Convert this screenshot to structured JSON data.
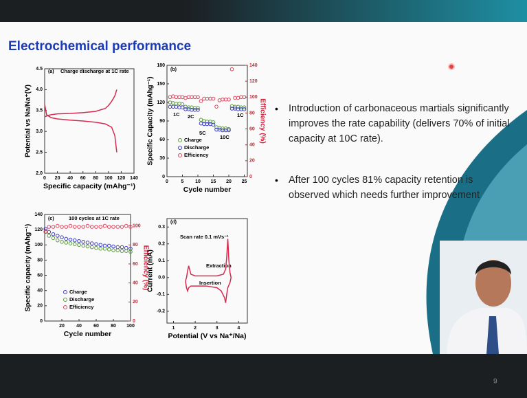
{
  "slide": {
    "title": "Electrochemical performance",
    "bullets": [
      "Introduction of carbonaceous martials significantly improves the rate capability (delivers 70% of initial capacity at 10C rate).",
      "After 100 cycles 81% capacity retention is observed which needs further improvement"
    ],
    "page_number": "9"
  },
  "chart_data": [
    {
      "type": "line",
      "annotations": [
        "(a)",
        "Charge discharge at 1C rate"
      ],
      "xlabel": "Specific capacity (mAhg⁻¹)",
      "ylabel": "Potential vs Na/Na⁺(V)",
      "xlim": [
        0,
        140
      ],
      "xticks": [
        0,
        20,
        40,
        60,
        80,
        100,
        120,
        140
      ],
      "ylim": [
        2.0,
        4.5
      ],
      "yticks": [
        {
          "value": 2.0,
          "label": "2.0"
        },
        2.5,
        {
          "value": 3.0,
          "label": "3.0"
        },
        3.5,
        {
          "value": 4.0,
          "label": "4.0"
        },
        4.5
      ],
      "series": [
        {
          "color": "#d62a4f",
          "x": [
            0,
            5,
            10,
            20,
            40,
            60,
            80,
            95,
            100,
            105,
            110,
            113
          ],
          "values": [
            3.35,
            3.38,
            3.4,
            3.42,
            3.43,
            3.45,
            3.48,
            3.55,
            3.62,
            3.72,
            3.85,
            4.0
          ]
        },
        {
          "color": "#d62a4f",
          "x": [
            0,
            3,
            10,
            20,
            40,
            60,
            80,
            95,
            105,
            110,
            113
          ],
          "values": [
            3.65,
            3.4,
            3.33,
            3.3,
            3.27,
            3.25,
            3.22,
            3.18,
            3.1,
            2.9,
            2.5
          ]
        }
      ]
    },
    {
      "type": "scatter",
      "annotations": [
        "(b)",
        "1C",
        "2C",
        "5C",
        "10C",
        "1C"
      ],
      "xlabel": "Cycle number",
      "ylabel": "Specific Capacity (mAhg⁻¹)",
      "y2label": "Efficiency (%)",
      "xlim": [
        0,
        26
      ],
      "xticks": [
        0,
        5,
        10,
        15,
        20,
        25
      ],
      "ylim": [
        0,
        180
      ],
      "yticks": [
        0,
        30,
        60,
        90,
        120,
        150,
        180
      ],
      "y2lim": [
        0,
        140
      ],
      "y2ticks": [
        0,
        20,
        40,
        60,
        80,
        100,
        120,
        140
      ],
      "x": [
        1,
        2,
        3,
        4,
        5,
        6,
        7,
        8,
        9,
        10,
        11,
        12,
        13,
        14,
        15,
        16,
        17,
        18,
        19,
        20,
        21,
        22,
        23,
        24,
        25
      ],
      "series": [
        {
          "name": "Charge",
          "color": "#5a9a3a",
          "values": [
            120,
            119,
            118,
            118,
            117,
            113,
            112,
            112,
            111,
            111,
            92,
            90,
            89,
            89,
            88,
            80,
            79,
            78,
            78,
            77,
            114,
            113,
            113,
            112,
            112
          ]
        },
        {
          "name": "Discharge",
          "color": "#3a3ac8",
          "values": [
            113,
            113,
            113,
            112,
            112,
            109,
            109,
            108,
            108,
            108,
            86,
            85,
            85,
            85,
            84,
            76,
            76,
            75,
            75,
            75,
            110,
            110,
            109,
            109,
            109
          ]
        },
        {
          "name": "Efficiency",
          "color": "#e0405a",
          "axis": "y2",
          "values": [
            100,
            101,
            100,
            100,
            100,
            99,
            100,
            100,
            100,
            100,
            95,
            98,
            98,
            98,
            98,
            88,
            96,
            97,
            97,
            97,
            135,
            99,
            99,
            100,
            100
          ]
        }
      ]
    },
    {
      "type": "scatter",
      "annotations": [
        "(c)",
        "100 cycles at 1C rate"
      ],
      "xlabel": "Cycle number",
      "ylabel": "Specific capacity (mAhg⁻¹)",
      "y2label": "Efficiency (%)",
      "xlim": [
        0,
        100
      ],
      "xticks": [
        20,
        40,
        60,
        80,
        100
      ],
      "ylim": [
        0,
        140
      ],
      "yticks": [
        0,
        20,
        40,
        60,
        80,
        100,
        120,
        140
      ],
      "y2lim": [
        0,
        112
      ],
      "y2ticks": [
        0,
        20,
        40,
        60,
        80,
        100
      ],
      "x": [
        1,
        5,
        10,
        15,
        20,
        25,
        30,
        35,
        40,
        45,
        50,
        55,
        60,
        65,
        70,
        75,
        80,
        85,
        90,
        95,
        100
      ],
      "series": [
        {
          "name": "Charge",
          "color": "#3a3ac8",
          "values": [
            121,
            117,
            114,
            112,
            110,
            108,
            107,
            106,
            105,
            104,
            103,
            102,
            101,
            100,
            99,
            99,
            98,
            97,
            97,
            96,
            95
          ]
        },
        {
          "name": "Discharge",
          "color": "#5a9a3a",
          "values": [
            117,
            112,
            109,
            106,
            104,
            103,
            102,
            101,
            100,
            99,
            98,
            97,
            96,
            95,
            95,
            94,
            93,
            93,
            92,
            92,
            91
          ]
        },
        {
          "name": "Efficiency",
          "color": "#e0405a",
          "axis": "y2",
          "values": [
            94,
            99,
            99,
            100,
            99,
            99,
            100,
            99,
            99,
            99,
            100,
            99,
            99,
            99,
            100,
            99,
            99,
            99,
            99,
            100,
            99
          ]
        }
      ]
    },
    {
      "type": "line",
      "annotations": [
        "(d)",
        "Scan rate 0.1 mVs⁻¹",
        "Extraction",
        "Insertion"
      ],
      "xlabel": "Potential (V vs Na⁺/Na)",
      "ylabel": "Current (mA)",
      "xlim": [
        0.7,
        4.4
      ],
      "xticks": [
        1,
        2,
        3,
        4
      ],
      "ylim": [
        -0.27,
        0.35
      ],
      "yticks": [
        -0.2,
        -0.1,
        {
          "value": 0.0,
          "label": "0.0"
        },
        0.1,
        0.2,
        0.3
      ],
      "series": [
        {
          "color": "#d62a4f",
          "x": [
            1.55,
            1.6,
            1.65,
            1.7,
            1.8,
            2.0,
            2.5,
            3.0,
            3.3,
            3.4,
            3.45,
            3.5,
            3.55,
            3.6,
            3.65,
            3.6,
            3.5,
            3.45,
            3.4,
            3.35,
            3.2,
            3.0,
            2.5,
            2.0,
            1.8,
            1.7,
            1.65,
            1.6,
            1.55
          ],
          "values": [
            -0.02,
            0.0,
            0.04,
            0.07,
            0.02,
            0.01,
            0.01,
            0.01,
            0.02,
            0.05,
            0.12,
            0.23,
            0.1,
            0.03,
            0.0,
            -0.03,
            -0.06,
            -0.1,
            -0.15,
            -0.12,
            -0.08,
            -0.06,
            -0.05,
            -0.05,
            -0.05,
            -0.06,
            -0.08,
            -0.06,
            -0.02
          ]
        }
      ]
    }
  ]
}
